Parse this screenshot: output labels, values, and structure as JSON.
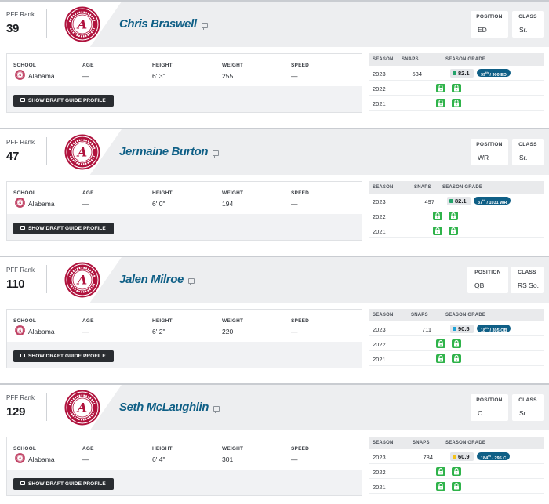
{
  "labels": {
    "pff_rank": "PFF Rank",
    "position": "POSITION",
    "class": "CLASS",
    "school": "SCHOOL",
    "age": "AGE",
    "height": "HEIGHT",
    "weight": "WEIGHT",
    "speed": "SPEED",
    "season": "SEASON",
    "snaps": "SNAPS",
    "season_grade": "SEASON GRADE",
    "draft_button": "SHOW DRAFT GUIDE PROFILE"
  },
  "colors": {
    "name_blue": "#0f5f86",
    "grade_green": "#23a36a",
    "grade_blue": "#1da1d6",
    "grade_yellow": "#f2c21b",
    "lock_green": "#2fb34a",
    "alabama_crimson": "#b0123d"
  },
  "players": [
    {
      "rank": "39",
      "name": "Chris Braswell",
      "position": "ED",
      "class": "Sr.",
      "school": "Alabama",
      "age": "—",
      "height": "6' 3\"",
      "weight": "255",
      "speed": "—",
      "seasons": [
        {
          "year": "2023",
          "snaps": "534",
          "grade": "82.1",
          "grade_color": "green",
          "rank_num": "99",
          "rank_sup": "th",
          "rank_total": "/ 900 ED"
        },
        {
          "year": "2022",
          "locked": true
        },
        {
          "year": "2021",
          "locked": true
        }
      ]
    },
    {
      "rank": "47",
      "name": "Jermaine Burton",
      "position": "WR",
      "class": "Sr.",
      "school": "Alabama",
      "age": "—",
      "height": "6' 0\"",
      "weight": "194",
      "speed": "—",
      "seasons": [
        {
          "year": "2023",
          "snaps": "497",
          "grade": "82.1",
          "grade_color": "green",
          "rank_num": "37",
          "rank_sup": "th",
          "rank_total": "/ 1031 WR"
        },
        {
          "year": "2022",
          "locked": true
        },
        {
          "year": "2021",
          "locked": true
        }
      ]
    },
    {
      "rank": "110",
      "name": "Jalen Milroe",
      "position": "QB",
      "class": "RS So.",
      "school": "Alabama",
      "age": "—",
      "height": "6' 2\"",
      "weight": "220",
      "speed": "—",
      "seasons": [
        {
          "year": "2023",
          "snaps": "711",
          "grade": "90.5",
          "grade_color": "blue",
          "rank_num": "18",
          "rank_sup": "th",
          "rank_total": "/ 305 QB"
        },
        {
          "year": "2022",
          "locked": true
        },
        {
          "year": "2021",
          "locked": true
        }
      ]
    },
    {
      "rank": "129",
      "name": "Seth McLaughlin",
      "position": "C",
      "class": "Sr.",
      "school": "Alabama",
      "age": "—",
      "height": "6' 4\"",
      "weight": "301",
      "speed": "—",
      "seasons": [
        {
          "year": "2023",
          "snaps": "784",
          "grade": "60.9",
          "grade_color": "yellow",
          "rank_num": "184",
          "rank_sup": "th",
          "rank_total": "/ 295 C"
        },
        {
          "year": "2022",
          "locked": true
        },
        {
          "year": "2021",
          "locked": true
        }
      ]
    }
  ]
}
